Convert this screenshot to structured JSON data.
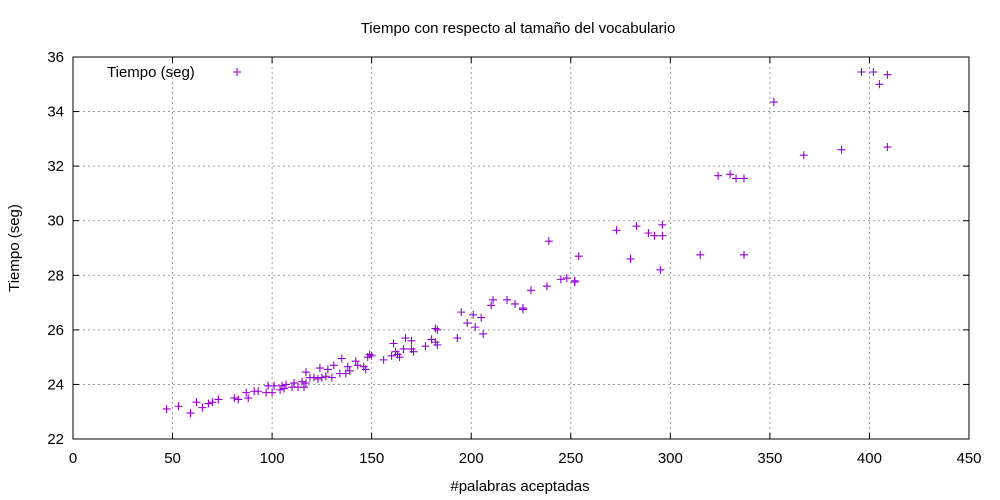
{
  "chart_data": {
    "type": "scatter",
    "title": "Tiempo con respecto al tamaño del vocabulario",
    "xlabel": "#palabras aceptadas",
    "ylabel": "Tiempo (seg)",
    "xlim": [
      0,
      450
    ],
    "ylim": [
      22,
      36
    ],
    "xticks": [
      0,
      50,
      100,
      150,
      200,
      250,
      300,
      350,
      400,
      450
    ],
    "yticks": [
      22,
      24,
      26,
      28,
      30,
      32,
      34,
      36
    ],
    "grid": true,
    "legend_position": "top-left",
    "series": [
      {
        "name": "Tiempo (seg)",
        "color": "#9400d3",
        "marker": "plus",
        "points": [
          [
            47,
            23.1
          ],
          [
            53,
            23.2
          ],
          [
            59,
            22.95
          ],
          [
            62,
            23.35
          ],
          [
            65,
            23.15
          ],
          [
            68,
            23.3
          ],
          [
            70,
            23.35
          ],
          [
            73,
            23.45
          ],
          [
            81,
            23.5
          ],
          [
            83,
            23.45
          ],
          [
            87,
            23.7
          ],
          [
            88,
            23.5
          ],
          [
            91,
            23.75
          ],
          [
            93,
            23.75
          ],
          [
            97,
            23.7
          ],
          [
            98,
            23.95
          ],
          [
            100,
            23.7
          ],
          [
            101,
            23.95
          ],
          [
            104,
            23.8
          ],
          [
            105,
            23.95
          ],
          [
            106,
            23.85
          ],
          [
            107,
            24.0
          ],
          [
            110,
            23.9
          ],
          [
            111,
            24.05
          ],
          [
            113,
            23.9
          ],
          [
            115,
            24.1
          ],
          [
            116,
            23.9
          ],
          [
            117,
            24.05
          ],
          [
            117,
            24.45
          ],
          [
            119,
            24.25
          ],
          [
            121,
            24.25
          ],
          [
            123,
            24.2
          ],
          [
            124,
            24.6
          ],
          [
            125,
            24.25
          ],
          [
            127,
            24.3
          ],
          [
            128,
            24.55
          ],
          [
            130,
            24.25
          ],
          [
            131,
            24.7
          ],
          [
            134,
            24.4
          ],
          [
            135,
            24.95
          ],
          [
            137,
            24.4
          ],
          [
            138,
            24.65
          ],
          [
            139,
            24.5
          ],
          [
            142,
            24.85
          ],
          [
            143,
            24.7
          ],
          [
            146,
            24.65
          ],
          [
            147,
            24.55
          ],
          [
            148,
            25.0
          ],
          [
            149,
            25.1
          ],
          [
            150,
            25.05
          ],
          [
            156,
            24.9
          ],
          [
            160,
            25.05
          ],
          [
            161,
            25.5
          ],
          [
            162,
            25.2
          ],
          [
            163,
            25.1
          ],
          [
            164,
            25.0
          ],
          [
            166,
            25.3
          ],
          [
            167,
            25.7
          ],
          [
            170,
            25.3
          ],
          [
            170,
            25.6
          ],
          [
            171,
            25.2
          ],
          [
            177,
            25.4
          ],
          [
            180,
            25.65
          ],
          [
            182,
            25.55
          ],
          [
            182,
            26.05
          ],
          [
            183,
            26.0
          ],
          [
            183,
            25.45
          ],
          [
            193,
            25.7
          ],
          [
            195,
            26.65
          ],
          [
            198,
            26.25
          ],
          [
            201,
            26.55
          ],
          [
            202,
            26.1
          ],
          [
            205,
            26.45
          ],
          [
            206,
            25.85
          ],
          [
            210,
            26.9
          ],
          [
            211,
            27.1
          ],
          [
            218,
            27.1
          ],
          [
            222,
            26.95
          ],
          [
            226,
            26.75
          ],
          [
            226,
            26.8
          ],
          [
            230,
            27.45
          ],
          [
            238,
            27.6
          ],
          [
            239,
            29.25
          ],
          [
            245,
            27.85
          ],
          [
            248,
            27.9
          ],
          [
            252,
            27.75
          ],
          [
            252,
            27.8
          ],
          [
            254,
            28.7
          ],
          [
            273,
            29.65
          ],
          [
            280,
            28.6
          ],
          [
            283,
            29.8
          ],
          [
            289,
            29.55
          ],
          [
            292,
            29.45
          ],
          [
            295,
            28.2
          ],
          [
            296,
            29.45
          ],
          [
            296,
            29.85
          ],
          [
            315,
            28.75
          ],
          [
            324,
            31.65
          ],
          [
            330,
            31.7
          ],
          [
            333,
            31.55
          ],
          [
            337,
            28.75
          ],
          [
            337,
            31.55
          ],
          [
            352,
            34.35
          ],
          [
            367,
            32.4
          ],
          [
            386,
            32.6
          ],
          [
            396,
            35.45
          ],
          [
            402,
            35.45
          ],
          [
            405,
            35.0
          ],
          [
            409,
            35.35
          ],
          [
            409,
            32.7
          ]
        ]
      }
    ]
  }
}
